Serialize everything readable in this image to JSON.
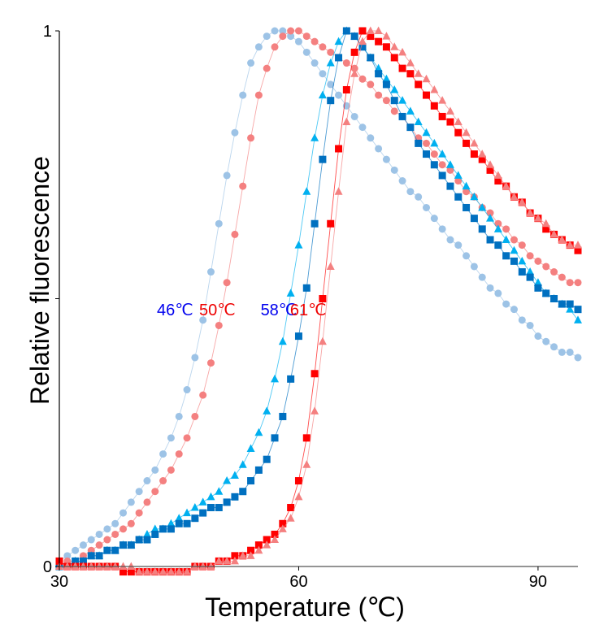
{
  "chart_data": {
    "type": "scatter",
    "title": "",
    "xlabel": "Temperature (℃)",
    "ylabel": "Relative fluorescence",
    "xlim": [
      30,
      95
    ],
    "ylim": [
      0,
      1
    ],
    "xticks": [
      30,
      60,
      90
    ],
    "xtick_labels": [
      "30",
      "60",
      "90"
    ],
    "yticks": [
      0,
      0.5,
      1
    ],
    "ytick_labels": [
      "0",
      "",
      "1"
    ],
    "grid": false,
    "legend": "none",
    "x": [
      30,
      31,
      32,
      33,
      34,
      35,
      36,
      37,
      38,
      39,
      40,
      41,
      42,
      43,
      44,
      45,
      46,
      47,
      48,
      49,
      50,
      51,
      52,
      53,
      54,
      55,
      56,
      57,
      58,
      59,
      60,
      61,
      62,
      63,
      64,
      65,
      66,
      67,
      68,
      69,
      70,
      71,
      72,
      73,
      74,
      75,
      76,
      77,
      78,
      79,
      80,
      81,
      82,
      83,
      84,
      85,
      86,
      87,
      88,
      89,
      90,
      91,
      92,
      93,
      94,
      95
    ],
    "annotations": [
      {
        "text": "46℃",
        "x": 44.5,
        "y": 0.49,
        "color": "#0000ee"
      },
      {
        "text": "50℃",
        "x": 49.8,
        "y": 0.49,
        "color": "#ee0000"
      },
      {
        "text": "58℃",
        "x": 57.5,
        "y": 0.49,
        "color": "#0000ee"
      },
      {
        "text": "61℃",
        "x": 61.2,
        "y": 0.49,
        "color": "#ee0000"
      }
    ],
    "series": [
      {
        "name": "46℃ circles",
        "marker": "circle",
        "color": "#9dc3e6",
        "values": [
          0.01,
          0.02,
          0.03,
          0.04,
          0.05,
          0.06,
          0.07,
          0.08,
          0.1,
          0.12,
          0.14,
          0.16,
          0.18,
          0.21,
          0.24,
          0.28,
          0.33,
          0.39,
          0.46,
          0.55,
          0.64,
          0.73,
          0.81,
          0.88,
          0.94,
          0.97,
          0.99,
          1.0,
          1.0,
          0.99,
          0.98,
          0.96,
          0.94,
          0.92,
          0.9,
          0.88,
          0.86,
          0.84,
          0.82,
          0.8,
          0.78,
          0.76,
          0.74,
          0.72,
          0.7,
          0.69,
          0.67,
          0.65,
          0.63,
          0.61,
          0.6,
          0.58,
          0.56,
          0.54,
          0.52,
          0.51,
          0.49,
          0.48,
          0.46,
          0.45,
          0.43,
          0.42,
          0.41,
          0.4,
          0.4,
          0.39
        ]
      },
      {
        "name": "50℃ circles",
        "marker": "circle",
        "color": "#f48080",
        "values": [
          0.0,
          0.01,
          0.01,
          0.02,
          0.03,
          0.04,
          0.05,
          0.06,
          0.07,
          0.08,
          0.1,
          0.12,
          0.14,
          0.16,
          0.18,
          0.21,
          0.24,
          0.28,
          0.32,
          0.38,
          0.45,
          0.53,
          0.62,
          0.71,
          0.8,
          0.88,
          0.93,
          0.97,
          0.99,
          1.0,
          1.0,
          0.99,
          0.98,
          0.97,
          0.96,
          0.95,
          0.94,
          0.93,
          0.91,
          0.9,
          0.88,
          0.87,
          0.85,
          0.84,
          0.82,
          0.8,
          0.79,
          0.77,
          0.75,
          0.74,
          0.72,
          0.7,
          0.69,
          0.67,
          0.66,
          0.64,
          0.63,
          0.61,
          0.6,
          0.58,
          0.57,
          0.56,
          0.55,
          0.54,
          0.53,
          0.53
        ]
      },
      {
        "name": "58℃ triangles",
        "marker": "triangle",
        "color": "#00b0f0",
        "values": [
          0.0,
          0.0,
          0.01,
          0.01,
          0.02,
          0.02,
          0.03,
          0.03,
          0.04,
          0.04,
          0.05,
          0.06,
          0.07,
          0.07,
          0.08,
          0.09,
          0.1,
          0.11,
          0.12,
          0.13,
          0.14,
          0.16,
          0.17,
          0.19,
          0.22,
          0.25,
          0.29,
          0.35,
          0.42,
          0.51,
          0.6,
          0.7,
          0.8,
          0.88,
          0.94,
          0.98,
          1.0,
          0.99,
          0.97,
          0.95,
          0.93,
          0.91,
          0.89,
          0.87,
          0.85,
          0.83,
          0.81,
          0.79,
          0.77,
          0.75,
          0.73,
          0.71,
          0.69,
          0.67,
          0.65,
          0.63,
          0.61,
          0.59,
          0.57,
          0.55,
          0.53,
          0.51,
          0.5,
          0.49,
          0.48,
          0.46
        ]
      },
      {
        "name": "58℃ squares",
        "marker": "square",
        "color": "#0070c0",
        "values": [
          0.0,
          0.0,
          0.01,
          0.01,
          0.02,
          0.02,
          0.03,
          0.03,
          0.04,
          0.04,
          0.05,
          0.05,
          0.06,
          0.07,
          0.07,
          0.08,
          0.08,
          0.09,
          0.1,
          0.11,
          0.11,
          0.12,
          0.13,
          0.14,
          0.16,
          0.18,
          0.2,
          0.24,
          0.28,
          0.35,
          0.43,
          0.52,
          0.64,
          0.76,
          0.87,
          0.95,
          1.0,
          0.99,
          0.97,
          0.95,
          0.92,
          0.9,
          0.87,
          0.84,
          0.82,
          0.79,
          0.77,
          0.75,
          0.73,
          0.71,
          0.69,
          0.67,
          0.65,
          0.63,
          0.61,
          0.6,
          0.58,
          0.57,
          0.55,
          0.54,
          0.52,
          0.51,
          0.5,
          0.49,
          0.49,
          0.48
        ]
      },
      {
        "name": "61℃ squares",
        "marker": "square",
        "color": "#ff0000",
        "values": [
          0.01,
          0.0,
          0.0,
          0.0,
          0.0,
          0.0,
          0.0,
          0.0,
          -0.01,
          -0.01,
          -0.01,
          -0.01,
          -0.01,
          -0.01,
          -0.01,
          -0.01,
          -0.01,
          0.0,
          0.0,
          0.0,
          0.01,
          0.01,
          0.02,
          0.02,
          0.03,
          0.04,
          0.05,
          0.06,
          0.08,
          0.11,
          0.16,
          0.24,
          0.36,
          0.5,
          0.64,
          0.78,
          0.89,
          0.96,
          1.0,
          0.99,
          0.98,
          0.97,
          0.95,
          0.93,
          0.92,
          0.9,
          0.88,
          0.86,
          0.84,
          0.83,
          0.81,
          0.79,
          0.77,
          0.76,
          0.74,
          0.72,
          0.71,
          0.69,
          0.68,
          0.66,
          0.65,
          0.63,
          0.62,
          0.61,
          0.6,
          0.59
        ]
      },
      {
        "name": "61℃ triangles",
        "marker": "triangle",
        "color": "#f48080",
        "values": [
          0.0,
          0.0,
          0.0,
          0.0,
          0.0,
          0.0,
          0.0,
          0.0,
          0.0,
          0.0,
          -0.01,
          -0.01,
          -0.01,
          -0.01,
          -0.01,
          -0.01,
          -0.01,
          0.0,
          0.0,
          0.0,
          0.01,
          0.01,
          0.01,
          0.02,
          0.02,
          0.03,
          0.04,
          0.05,
          0.07,
          0.09,
          0.13,
          0.19,
          0.29,
          0.42,
          0.56,
          0.7,
          0.83,
          0.92,
          0.98,
          1.0,
          1.0,
          0.99,
          0.97,
          0.96,
          0.94,
          0.92,
          0.91,
          0.89,
          0.87,
          0.85,
          0.83,
          0.81,
          0.79,
          0.77,
          0.75,
          0.73,
          0.71,
          0.69,
          0.68,
          0.66,
          0.65,
          0.64,
          0.62,
          0.61,
          0.6,
          0.6
        ]
      }
    ]
  }
}
